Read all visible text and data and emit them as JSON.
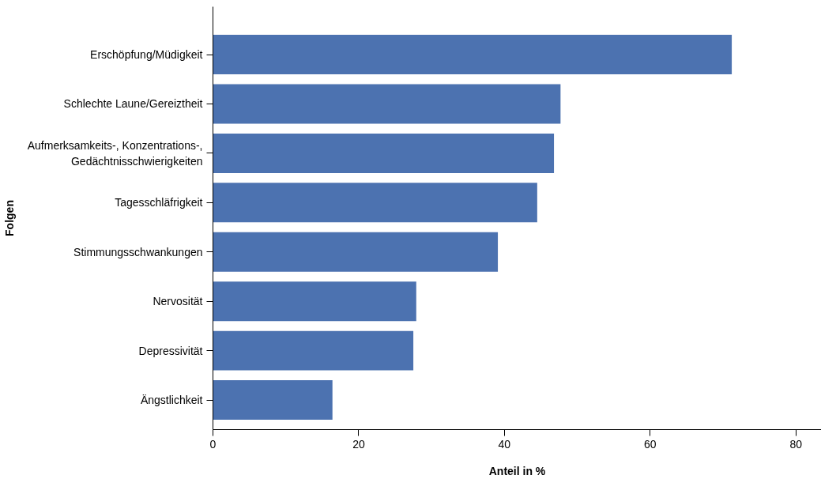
{
  "chart_data": {
    "type": "bar",
    "orientation": "horizontal",
    "xlabel": "Anteil in %",
    "ylabel": "Folgen",
    "categories": [
      "Erschöpfung/Müdigkeit",
      "Schlechte Laune/Gereiztheit",
      "Aufmerksamkeits-, Konzentrations-,\nGedächtnisschwierigkeiten",
      "Tagesschläfrigkeit",
      "Stimmungsschwankungen",
      "Nervosität",
      "Depressivität",
      "Ängstlichkeit"
    ],
    "values": [
      71.2,
      47.7,
      46.8,
      44.5,
      39.1,
      27.9,
      27.5,
      16.4
    ],
    "color": "#4c72b0",
    "xlim": [
      0,
      83.5
    ],
    "xticks": [
      0,
      20,
      40,
      60,
      80
    ],
    "grid": false
  }
}
